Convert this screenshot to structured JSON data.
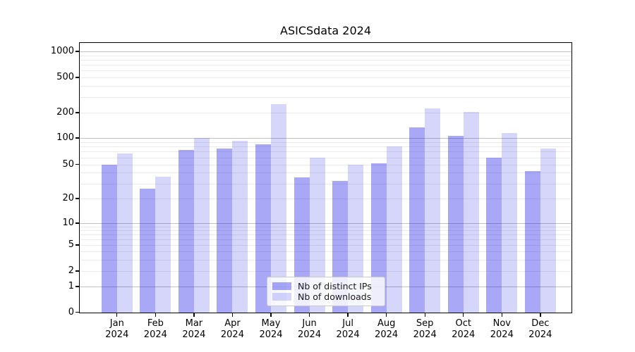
{
  "title": "ASICSdata 2024",
  "chart_data": {
    "type": "bar",
    "title": "ASICSdata 2024",
    "categories": [
      "Jan",
      "Feb",
      "Mar",
      "Apr",
      "May",
      "Jun",
      "Jul",
      "Aug",
      "Sep",
      "Oct",
      "Nov",
      "Dec"
    ],
    "category_year": "2024",
    "series": [
      {
        "name": "Nb of distinct IPs",
        "color": "#a9a9f2",
        "fill": "rgba(0,0,230,0.34)",
        "values": [
          50,
          26,
          73,
          76,
          85,
          35,
          32,
          51,
          133,
          106,
          60,
          42
        ]
      },
      {
        "name": "Nb of downloads",
        "color": "#d9d9f8",
        "fill": "rgba(0,0,230,0.16)",
        "values": [
          66,
          36,
          100,
          93,
          248,
          60,
          50,
          80,
          223,
          205,
          115,
          76
        ]
      }
    ],
    "xlabel": "",
    "ylabel": "",
    "yscale": "symlog",
    "y_ticks": [
      0,
      1,
      2,
      5,
      10,
      20,
      50,
      100,
      200,
      500,
      1000
    ],
    "ylim": [
      0,
      1259
    ],
    "grid": true,
    "legend_position": "lower center"
  }
}
